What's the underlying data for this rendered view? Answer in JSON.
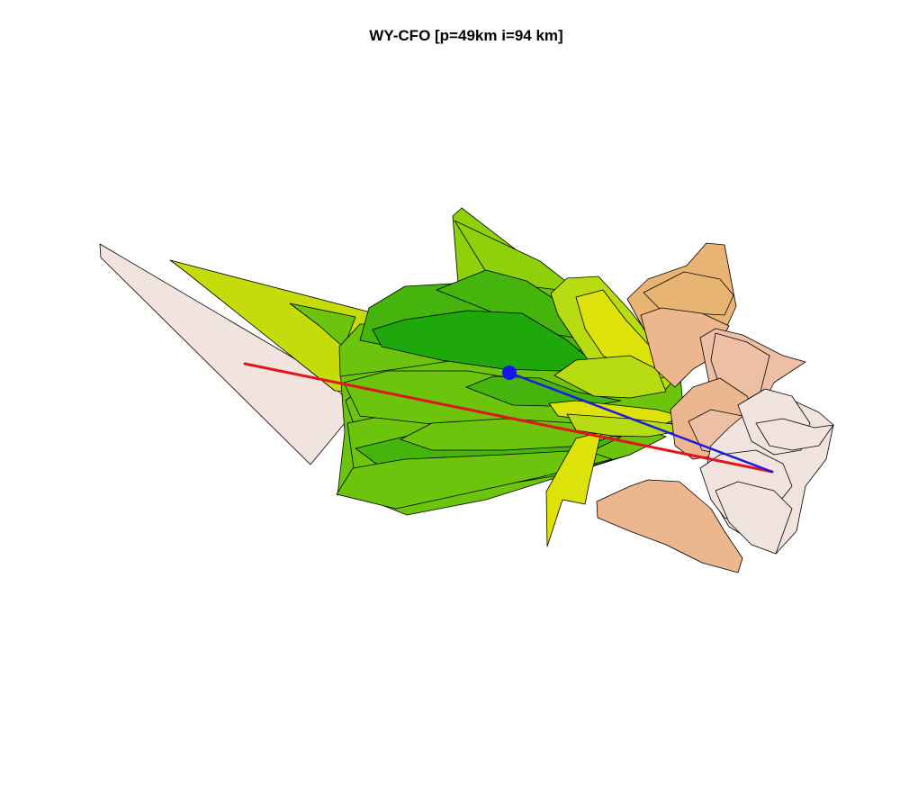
{
  "title": "WY-CFO [p=49km i=94 km]",
  "colors": {
    "background": "#ffffff",
    "outline": "#000000",
    "red_line": "#e0161c",
    "blue_line": "#1c1ce0",
    "blue_point": "#1515f0",
    "pale_pink": "#f1e4de",
    "peach": "#ecb68f",
    "light_salmon": "#edc0a6",
    "tan": "#e8b473",
    "yellow": "#dde20b",
    "yellow_green": "#c5dc0a",
    "light_yellow_green": "#b7dc12",
    "lime": "#8ed10a",
    "green": "#6cc40c",
    "mid_green": "#45b40c",
    "dark_green": "#1ea80b"
  }
}
